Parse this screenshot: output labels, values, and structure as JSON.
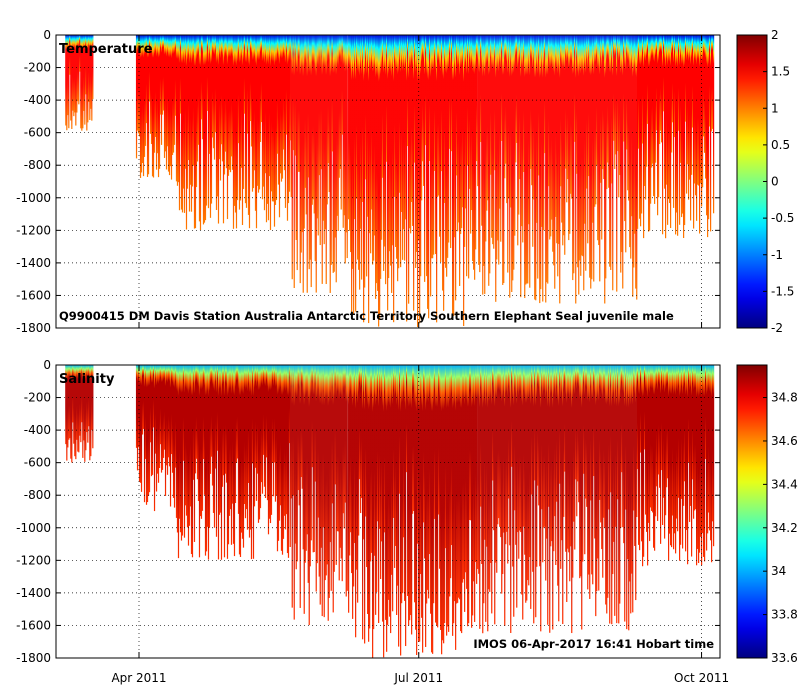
{
  "chart_data": [
    {
      "type": "heatmap",
      "title": "Temperature",
      "panel_label": "Temperature",
      "variable": "Temperature",
      "annotation": "Q9900415 DM Davis Station Australia Antarctic Territory Southern Elephant Seal juvenile male",
      "xlabel": "",
      "ylabel": "",
      "x_date_range": [
        "2011-03-05",
        "2011-10-07"
      ],
      "x_ticks": [
        {
          "date": "2011-04-01",
          "label": "Apr 2011"
        },
        {
          "date": "2011-07-01",
          "label": "Jul 2011"
        },
        {
          "date": "2011-10-01",
          "label": "Oct 2011"
        }
      ],
      "ylim": [
        -1800,
        0
      ],
      "y_ticks": [
        0,
        -200,
        -400,
        -600,
        -800,
        -1000,
        -1200,
        -1400,
        -1600,
        -1800
      ],
      "colorbar": {
        "vmin": -2,
        "vmax": 2,
        "ticks": [
          2,
          1.5,
          1,
          0.5,
          0,
          -0.5,
          -1,
          -1.5,
          -2
        ],
        "colormap": "jet"
      },
      "surface_value": -1.6,
      "deep_value": 1.5,
      "profile_coverage": [
        {
          "start": "2011-03-08",
          "end": "2011-03-17",
          "max_depth": 600
        },
        {
          "start": "2011-03-31",
          "end": "2011-04-13",
          "max_depth": 900
        },
        {
          "start": "2011-04-13",
          "end": "2011-05-20",
          "max_depth": 1200
        },
        {
          "start": "2011-05-20",
          "end": "2011-06-08",
          "max_depth": 1600
        },
        {
          "start": "2011-06-08",
          "end": "2011-07-20",
          "max_depth": 1800
        },
        {
          "start": "2011-07-20",
          "end": "2011-09-10",
          "max_depth": 1650
        },
        {
          "start": "2011-09-10",
          "end": "2011-10-05",
          "max_depth": 1250
        }
      ]
    },
    {
      "type": "heatmap",
      "title": "Salinity",
      "panel_label": "Salinity",
      "variable": "Salinity",
      "annotation": "IMOS 06-Apr-2017 16:41 Hobart time",
      "xlabel": "",
      "ylabel": "",
      "x_date_range": [
        "2011-03-05",
        "2011-10-07"
      ],
      "x_ticks": [
        {
          "date": "2011-04-01",
          "label": "Apr 2011"
        },
        {
          "date": "2011-07-01",
          "label": "Jul 2011"
        },
        {
          "date": "2011-10-01",
          "label": "Oct 2011"
        }
      ],
      "ylim": [
        -1800,
        0
      ],
      "y_ticks": [
        0,
        -200,
        -400,
        -600,
        -800,
        -1000,
        -1200,
        -1400,
        -1600,
        -1800
      ],
      "colorbar": {
        "vmin": 33.6,
        "vmax": 34.95,
        "ticks": [
          34.8,
          34.6,
          34.4,
          34.2,
          34,
          33.8,
          33.6
        ],
        "colormap": "jet"
      },
      "surface_value": 34.0,
      "deep_value": 34.88,
      "profile_coverage": [
        {
          "start": "2011-03-08",
          "end": "2011-03-17",
          "max_depth": 600
        },
        {
          "start": "2011-03-31",
          "end": "2011-04-13",
          "max_depth": 900
        },
        {
          "start": "2011-04-13",
          "end": "2011-05-20",
          "max_depth": 1200
        },
        {
          "start": "2011-05-20",
          "end": "2011-06-08",
          "max_depth": 1600
        },
        {
          "start": "2011-06-08",
          "end": "2011-07-20",
          "max_depth": 1800
        },
        {
          "start": "2011-07-20",
          "end": "2011-09-10",
          "max_depth": 1650
        },
        {
          "start": "2011-09-10",
          "end": "2011-10-05",
          "max_depth": 1250
        }
      ]
    }
  ]
}
